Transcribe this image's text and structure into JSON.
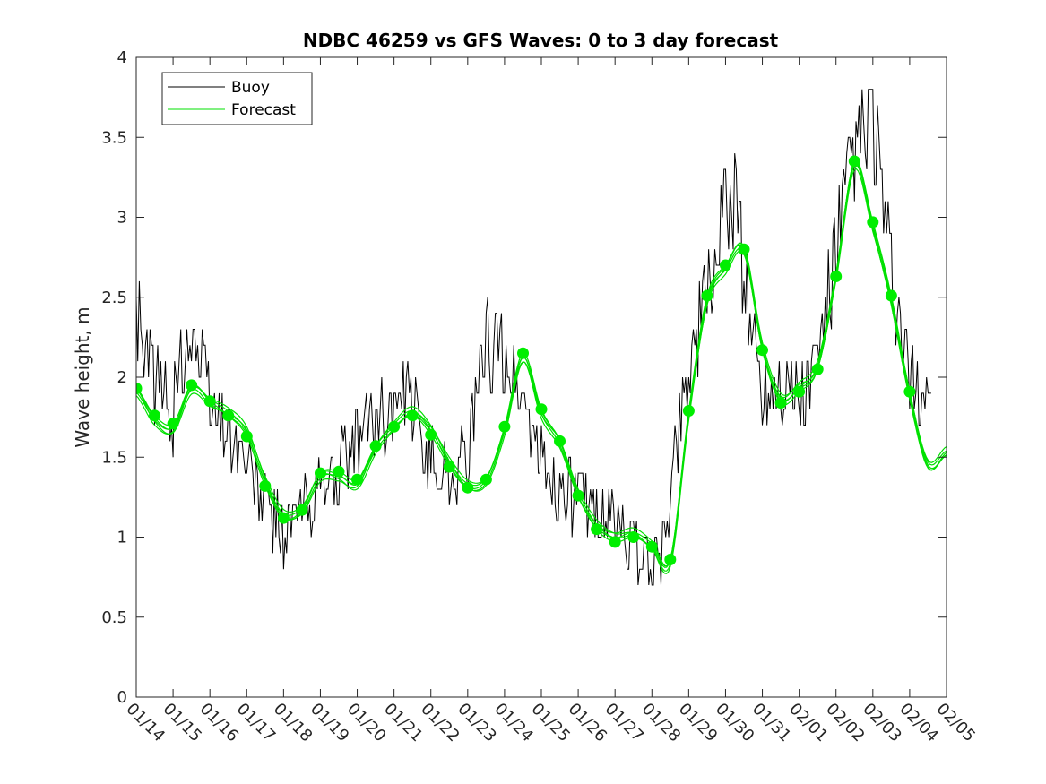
{
  "chart_data": {
    "type": "line",
    "title": "NDBC 46259 vs GFS Waves: 0 to 3 day forecast",
    "xlabel": "",
    "ylabel": "Wave height, m",
    "xlim": [
      0,
      22
    ],
    "ylim": [
      0,
      4
    ],
    "yticks": [
      0,
      0.5,
      1,
      1.5,
      2,
      2.5,
      3,
      3.5,
      4
    ],
    "ytick_labels": [
      "0",
      "0.5",
      "1",
      "1.5",
      "2",
      "2.5",
      "3",
      "3.5",
      "4"
    ],
    "xtick_labels": [
      "01/14",
      "01/15",
      "01/16",
      "01/17",
      "01/18",
      "01/19",
      "01/20",
      "01/21",
      "01/22",
      "01/23",
      "01/24",
      "01/25",
      "01/26",
      "01/27",
      "01/28",
      "01/29",
      "01/30",
      "01/31",
      "02/01",
      "02/02",
      "02/03",
      "02/04",
      "02/05"
    ],
    "grid": false,
    "legend": {
      "position": "top-left",
      "entries": [
        "Buoy",
        "Forecast"
      ]
    },
    "colors": {
      "buoy": "#000000",
      "forecast": "#00e000",
      "marker": "#00ee00",
      "axis": "#262626"
    },
    "series": [
      {
        "name": "Buoy",
        "x": [
          0,
          0.5,
          1,
          1.3,
          1.5,
          2,
          2.5,
          2.7,
          3,
          3.5,
          4,
          4.5,
          5,
          5.5,
          6,
          6.5,
          7,
          7.5,
          8,
          8.5,
          9,
          9.5,
          10,
          10.5,
          11,
          11.5,
          12,
          12.5,
          13,
          13.5,
          14,
          14.3,
          14.5,
          15,
          15.5,
          16,
          16.3,
          16.5,
          17,
          17.5,
          18,
          18.5,
          19,
          19.5,
          20,
          20.5,
          21,
          21.5
        ],
        "values": [
          2.4,
          2.0,
          1.8,
          2.2,
          2.3,
          1.85,
          1.7,
          1.6,
          1.45,
          1.2,
          1.02,
          1.15,
          1.3,
          1.4,
          1.6,
          1.75,
          1.8,
          1.8,
          1.5,
          1.4,
          1.5,
          2.2,
          2.15,
          1.85,
          1.45,
          1.3,
          1.25,
          1.15,
          1.1,
          0.95,
          0.8,
          0.9,
          1.3,
          2.1,
          2.5,
          3.0,
          3.2,
          2.6,
          1.9,
          2.0,
          1.85,
          2.1,
          2.8,
          3.4,
          3.6,
          2.6,
          1.95,
          1.9
        ]
      },
      {
        "name": "Forecast",
        "x": [
          0,
          0.5,
          1,
          1.5,
          2,
          2.5,
          3,
          3.5,
          4,
          4.5,
          5,
          5.5,
          6,
          6.5,
          7,
          7.5,
          8,
          8.5,
          9,
          9.5,
          10,
          10.5,
          11,
          11.5,
          12,
          12.5,
          13,
          13.5,
          14,
          14.5,
          15,
          15.5,
          16,
          16.5,
          17,
          17.5,
          18,
          18.5,
          19,
          19.5,
          20,
          20.5,
          21,
          21.5,
          22
        ],
        "values": [
          1.93,
          1.76,
          1.71,
          1.95,
          1.85,
          1.76,
          1.63,
          1.32,
          1.12,
          1.17,
          1.4,
          1.41,
          1.36,
          1.57,
          1.69,
          1.76,
          1.64,
          1.44,
          1.31,
          1.36,
          1.69,
          2.15,
          1.8,
          1.6,
          1.26,
          1.05,
          0.97,
          1.0,
          0.94,
          0.86,
          1.79,
          2.51,
          2.7,
          2.8,
          2.17,
          1.84,
          1.91,
          2.05,
          2.63,
          3.35,
          2.97,
          2.51,
          1.91,
          1.45,
          1.51
        ]
      }
    ]
  }
}
